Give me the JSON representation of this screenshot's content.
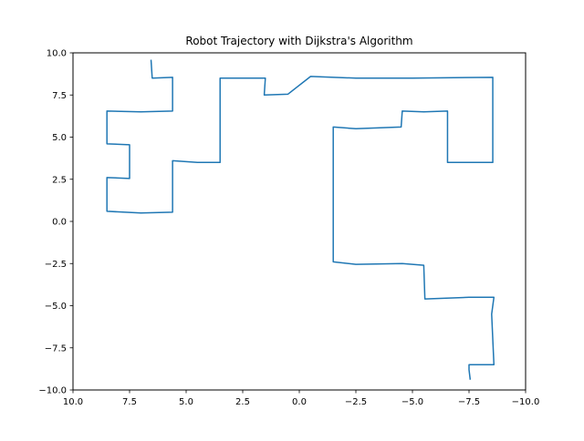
{
  "chart_data": {
    "type": "line",
    "title": "Robot Trajectory with Dijkstra's Algorithm",
    "xlabel": "",
    "ylabel": "",
    "xlim": [
      10.0,
      -10.0
    ],
    "ylim": [
      -10.0,
      10.0
    ],
    "x_axis_inverted": true,
    "grid": false,
    "xticks": [
      10.0,
      7.5,
      5.0,
      2.5,
      0.0,
      -2.5,
      -5.0,
      -7.5,
      -10.0
    ],
    "xtick_labels": [
      "10.0",
      "7.5",
      "5.0",
      "2.5",
      "0.0",
      "−2.5",
      "−5.0",
      "−7.5",
      "−10.0"
    ],
    "yticks": [
      10.0,
      7.5,
      5.0,
      2.5,
      0.0,
      -2.5,
      -5.0,
      -7.5,
      -10.0
    ],
    "ytick_labels": [
      "10.0",
      "7.5",
      "5.0",
      "2.5",
      "0.0",
      "−2.5",
      "−5.0",
      "−7.5",
      "−10.0"
    ],
    "series": [
      {
        "color": "#1f77b4",
        "points": [
          [
            6.55,
            9.55
          ],
          [
            6.5,
            8.5
          ],
          [
            5.6,
            8.55
          ],
          [
            5.6,
            6.55
          ],
          [
            7.0,
            6.5
          ],
          [
            8.5,
            6.55
          ],
          [
            8.5,
            4.6
          ],
          [
            7.5,
            4.55
          ],
          [
            7.5,
            2.55
          ],
          [
            8.5,
            2.6
          ],
          [
            8.5,
            0.6
          ],
          [
            7.0,
            0.5
          ],
          [
            5.6,
            0.55
          ],
          [
            5.6,
            3.6
          ],
          [
            4.5,
            3.5
          ],
          [
            3.5,
            3.5
          ],
          [
            3.5,
            8.5
          ],
          [
            1.5,
            8.5
          ],
          [
            1.55,
            7.5
          ],
          [
            0.5,
            7.55
          ],
          [
            -0.5,
            8.6
          ],
          [
            -2.5,
            8.5
          ],
          [
            -5.0,
            8.5
          ],
          [
            -8.55,
            8.55
          ],
          [
            -8.55,
            3.5
          ],
          [
            -6.55,
            3.5
          ],
          [
            -6.55,
            6.55
          ],
          [
            -5.5,
            6.5
          ],
          [
            -4.55,
            6.55
          ],
          [
            -4.5,
            5.6
          ],
          [
            -2.5,
            5.5
          ],
          [
            -1.5,
            5.6
          ],
          [
            -1.5,
            0.5
          ],
          [
            -1.5,
            -2.4
          ],
          [
            -2.5,
            -2.55
          ],
          [
            -4.55,
            -2.5
          ],
          [
            -5.5,
            -2.6
          ],
          [
            -5.55,
            -4.6
          ],
          [
            -7.5,
            -4.5
          ],
          [
            -8.6,
            -4.5
          ],
          [
            -8.5,
            -5.5
          ],
          [
            -8.6,
            -8.5
          ],
          [
            -7.5,
            -8.5
          ],
          [
            -7.5,
            -8.8
          ],
          [
            -7.55,
            -9.35
          ]
        ]
      }
    ]
  }
}
